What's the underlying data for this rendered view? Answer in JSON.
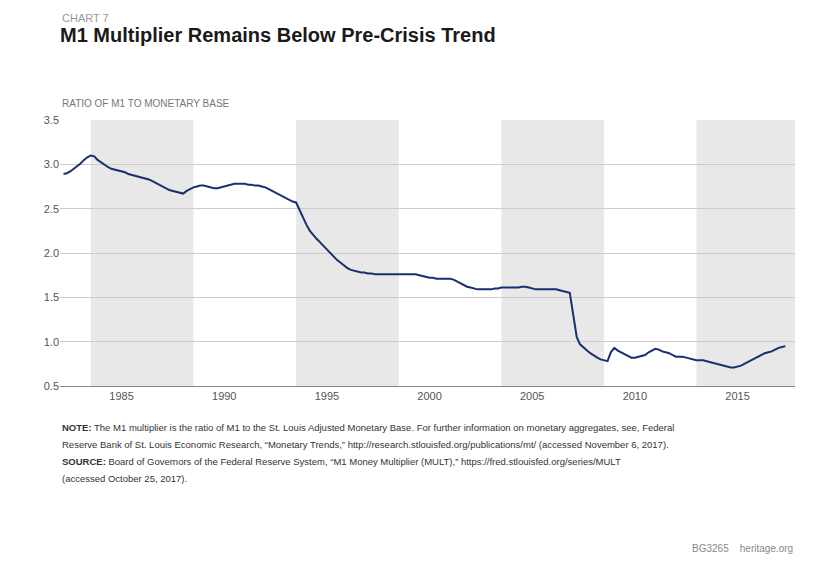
{
  "chart_data": {
    "type": "line",
    "subtitle": "CHART 7",
    "title": "M1 Multiplier Remains Below Pre-Crisis Trend",
    "ylabel": "RATIO OF M1 TO MONETARY BASE",
    "annotations": [
      "NOTE: The M1 multiplier is the ratio of M1 to the St. Louis Adjusted Monetary Base. For further information on monetary aggregates, see, Federal",
      "Reserve Bank of St. Louis Economic Research, “Monetary Trends,” http://research.stlouisfed.org/publications/mt/ (accessed November 6, 2017).",
      "SOURCE: Board of Governors of the Federal Reserve System, “M1 Money Multiplier (MULT),” https://fred.stlouisfed.org/series/MULT",
      "(accessed October 25, 2017).",
      "BG3265    heritage.org"
    ],
    "xlim": [
      1982.0,
      2017.8
    ],
    "xticks": [
      1985,
      1990,
      1995,
      2000,
      2005,
      2010,
      2015
    ],
    "ylim": [
      0.5,
      3.5
    ],
    "yticks": [
      0.5,
      {
        "value": 1,
        "label": "1.0"
      },
      1.5,
      {
        "value": 2,
        "label": "2.0"
      },
      2.5,
      {
        "value": 3,
        "label": "3.0"
      },
      3.5
    ],
    "grid": "y",
    "bands": {
      "color": "#e8e8e8",
      "ranges": [
        [
          1983.5,
          1988.5
        ],
        [
          1993.5,
          1998.5
        ],
        [
          2003.5,
          2008.5
        ],
        [
          2013.0,
          2017.8
        ]
      ]
    },
    "color": "#1a2f6e",
    "x": [
      1982.17,
      1982.33,
      1982.5,
      1982.67,
      1982.83,
      1983.0,
      1983.17,
      1983.33,
      1983.5,
      1983.67,
      1983.83,
      1984.0,
      1984.17,
      1984.33,
      1984.5,
      1984.67,
      1984.83,
      1985.0,
      1985.17,
      1985.33,
      1985.5,
      1985.67,
      1985.83,
      1986.0,
      1986.17,
      1986.33,
      1986.5,
      1986.67,
      1986.83,
      1987.0,
      1987.17,
      1987.33,
      1987.5,
      1987.67,
      1987.83,
      1988.0,
      1988.17,
      1988.33,
      1988.5,
      1988.67,
      1988.83,
      1989.0,
      1989.17,
      1989.33,
      1989.5,
      1989.67,
      1989.83,
      1990.0,
      1990.17,
      1990.33,
      1990.5,
      1990.67,
      1990.83,
      1991.0,
      1991.17,
      1991.33,
      1991.5,
      1991.67,
      1991.83,
      1992.0,
      1992.17,
      1992.33,
      1992.5,
      1992.67,
      1992.83,
      1993.0,
      1993.17,
      1993.33,
      1993.5,
      1993.67,
      1993.83,
      1994.0,
      1994.17,
      1994.33,
      1994.5,
      1994.67,
      1994.83,
      1995.0,
      1995.17,
      1995.33,
      1995.5,
      1995.67,
      1995.83,
      1996.0,
      1996.17,
      1996.33,
      1996.5,
      1996.67,
      1996.83,
      1997.0,
      1997.17,
      1997.33,
      1997.5,
      1997.67,
      1997.83,
      1998.0,
      1998.17,
      1998.33,
      1998.5,
      1998.67,
      1998.83,
      1999.0,
      1999.17,
      1999.33,
      1999.5,
      1999.67,
      1999.83,
      2000.0,
      2000.17,
      2000.33,
      2000.5,
      2000.67,
      2000.83,
      2001.0,
      2001.17,
      2001.33,
      2001.5,
      2001.67,
      2001.83,
      2002.0,
      2002.17,
      2002.33,
      2002.5,
      2002.67,
      2002.83,
      2003.0,
      2003.17,
      2003.33,
      2003.5,
      2003.67,
      2003.83,
      2004.0,
      2004.17,
      2004.33,
      2004.5,
      2004.67,
      2004.83,
      2005.0,
      2005.17,
      2005.33,
      2005.5,
      2005.67,
      2005.83,
      2006.0,
      2006.17,
      2006.33,
      2006.5,
      2006.67,
      2006.83,
      2007.0,
      2007.17,
      2007.33,
      2007.5,
      2007.67,
      2007.83,
      2008.0,
      2008.17,
      2008.33,
      2008.5,
      2008.67,
      2008.83,
      2009.0,
      2009.17,
      2009.33,
      2009.5,
      2009.67,
      2009.83,
      2010.0,
      2010.17,
      2010.33,
      2010.5,
      2010.67,
      2010.83,
      2011.0,
      2011.17,
      2011.33,
      2011.5,
      2011.67,
      2011.83,
      2012.0,
      2012.17,
      2012.33,
      2012.5,
      2012.67,
      2012.83,
      2013.0,
      2013.17,
      2013.33,
      2013.5,
      2013.67,
      2013.83,
      2014.0,
      2014.17,
      2014.33,
      2014.5,
      2014.67,
      2014.83,
      2015.0,
      2015.17,
      2015.33,
      2015.5,
      2015.67,
      2015.83,
      2016.0,
      2016.17,
      2016.33,
      2016.5,
      2016.67,
      2016.83,
      2017.0,
      2017.17,
      2017.33
    ],
    "values": [
      2.89,
      2.9,
      2.92,
      2.95,
      2.98,
      3.01,
      3.05,
      3.08,
      3.1,
      3.09,
      3.05,
      3.02,
      2.99,
      2.97,
      2.95,
      2.94,
      2.93,
      2.92,
      2.91,
      2.89,
      2.88,
      2.87,
      2.86,
      2.85,
      2.84,
      2.83,
      2.81,
      2.79,
      2.77,
      2.75,
      2.73,
      2.71,
      2.7,
      2.69,
      2.68,
      2.67,
      2.7,
      2.72,
      2.74,
      2.75,
      2.76,
      2.76,
      2.75,
      2.74,
      2.73,
      2.73,
      2.74,
      2.75,
      2.76,
      2.77,
      2.78,
      2.78,
      2.78,
      2.78,
      2.77,
      2.77,
      2.76,
      2.76,
      2.75,
      2.74,
      2.72,
      2.7,
      2.68,
      2.66,
      2.64,
      2.62,
      2.6,
      2.58,
      2.57,
      2.48,
      2.4,
      2.32,
      2.25,
      2.2,
      2.16,
      2.12,
      2.08,
      2.04,
      2.0,
      1.96,
      1.92,
      1.89,
      1.86,
      1.83,
      1.81,
      1.8,
      1.79,
      1.78,
      1.78,
      1.77,
      1.77,
      1.76,
      1.76,
      1.76,
      1.76,
      1.76,
      1.76,
      1.76,
      1.76,
      1.76,
      1.76,
      1.76,
      1.76,
      1.76,
      1.75,
      1.74,
      1.73,
      1.72,
      1.72,
      1.71,
      1.71,
      1.71,
      1.71,
      1.71,
      1.7,
      1.68,
      1.66,
      1.64,
      1.62,
      1.61,
      1.6,
      1.59,
      1.59,
      1.59,
      1.59,
      1.59,
      1.6,
      1.6,
      1.61,
      1.61,
      1.61,
      1.61,
      1.61,
      1.61,
      1.62,
      1.62,
      1.61,
      1.6,
      1.59,
      1.59,
      1.59,
      1.59,
      1.59,
      1.59,
      1.59,
      1.58,
      1.57,
      1.56,
      1.55,
      1.3,
      1.05,
      0.97,
      0.93,
      0.9,
      0.87,
      0.84,
      0.82,
      0.8,
      0.79,
      0.78,
      0.88,
      0.93,
      0.9,
      0.88,
      0.86,
      0.84,
      0.82,
      0.82,
      0.83,
      0.84,
      0.85,
      0.88,
      0.9,
      0.92,
      0.91,
      0.89,
      0.88,
      0.87,
      0.85,
      0.83,
      0.83,
      0.83,
      0.82,
      0.81,
      0.8,
      0.79,
      0.79,
      0.79,
      0.78,
      0.77,
      0.76,
      0.75,
      0.74,
      0.73,
      0.72,
      0.71,
      0.71,
      0.72,
      0.73,
      0.75,
      0.77,
      0.79,
      0.81,
      0.83,
      0.85,
      0.87,
      0.88,
      0.89,
      0.91,
      0.93,
      0.94,
      0.95
    ]
  }
}
